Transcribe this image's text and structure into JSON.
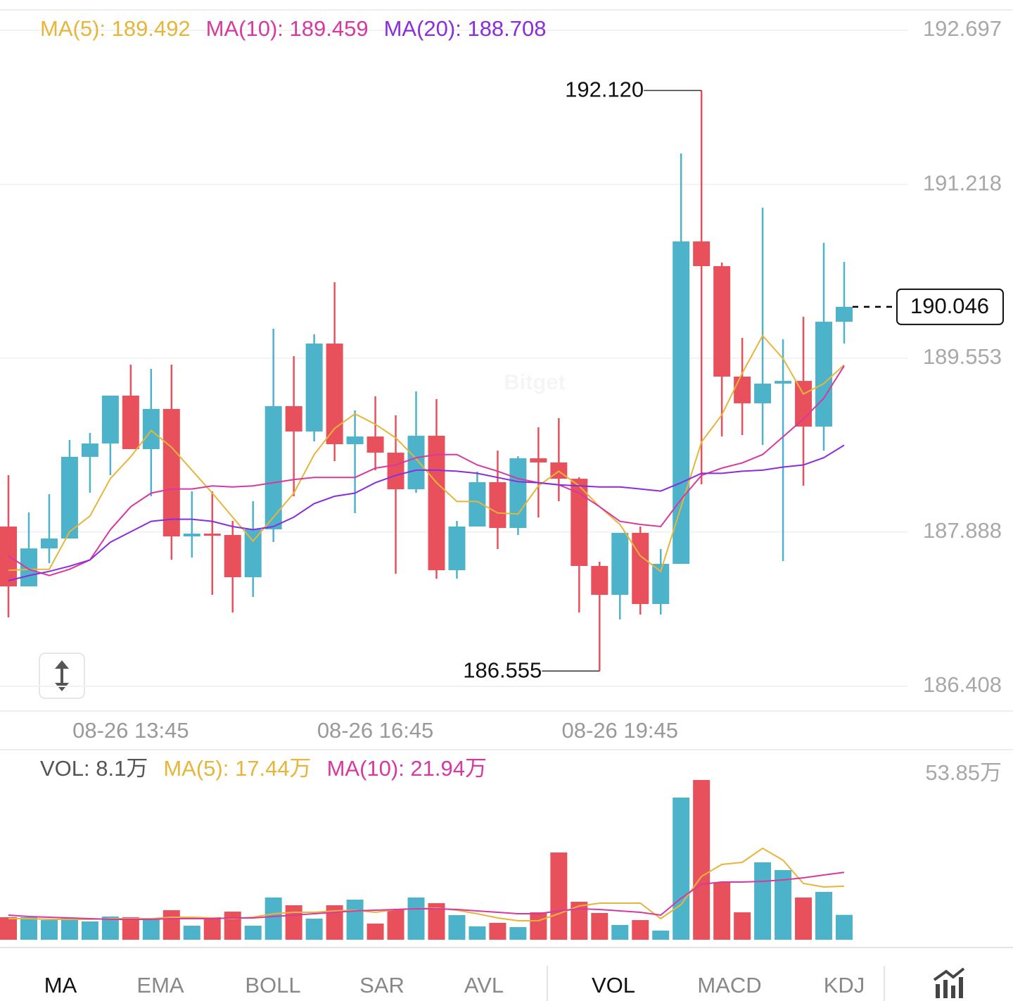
{
  "chart_data": [
    {
      "type": "candlestick",
      "watermark": "Bitget",
      "up_color": "#4cb3cb",
      "down_color": "#e8515c",
      "categories": [
        null,
        null,
        null,
        null,
        null,
        null,
        "08-26 13:45",
        null,
        null,
        null,
        null,
        null,
        null,
        null,
        null,
        null,
        null,
        null,
        "08-26 16:45",
        null,
        null,
        null,
        null,
        null,
        null,
        null,
        null,
        null,
        null,
        null,
        "08-26 19:45",
        null,
        null,
        null,
        null,
        null,
        null,
        null,
        null,
        null,
        null,
        null
      ],
      "open": [
        187.94,
        187.366,
        187.73,
        187.825,
        188.608,
        188.736,
        189.195,
        188.682,
        189.067,
        187.845,
        187.872,
        187.859,
        187.454,
        187.913,
        189.094,
        188.851,
        189.694,
        188.729,
        188.803,
        188.648,
        188.297,
        188.81,
        187.521,
        187.94,
        188.365,
        187.926,
        188.594,
        188.554,
        188.398,
        187.562,
        187.285,
        187.879,
        187.197,
        187.582,
        190.673,
        190.436,
        189.377,
        189.121,
        189.31,
        189.336,
        188.898,
        189.903
      ],
      "high": [
        188.432,
        188.075,
        188.25,
        188.77,
        188.837,
        189.195,
        189.492,
        189.451,
        189.492,
        188.277,
        188.277,
        187.994,
        188.183,
        189.836,
        189.573,
        189.782,
        190.281,
        189.053,
        189.188,
        189.006,
        189.235,
        189.161,
        187.994,
        188.466,
        188.668,
        188.614,
        188.891,
        188.979,
        188.412,
        187.602,
        187.879,
        187.94,
        187.724,
        191.516,
        192.12,
        190.47,
        189.748,
        190.996,
        189.735,
        189.951,
        190.659,
        190.477
      ],
      "low": [
        187.069,
        187.366,
        187.589,
        187.825,
        188.264,
        188.432,
        188.682,
        188.23,
        187.622,
        187.643,
        187.285,
        187.116,
        187.265,
        187.791,
        188.23,
        188.756,
        188.567,
        188.068,
        188.479,
        187.488,
        188.264,
        187.44,
        187.44,
        187.94,
        187.724,
        187.859,
        188.027,
        188.183,
        187.116,
        186.555,
        187.049,
        187.096,
        187.096,
        187.582,
        188.345,
        188.803,
        188.817,
        188.722,
        187.609,
        188.331,
        188.668,
        189.694
      ],
      "close": [
        187.366,
        187.73,
        187.825,
        188.608,
        188.736,
        189.195,
        188.682,
        189.067,
        187.845,
        187.872,
        187.859,
        187.454,
        187.913,
        189.094,
        188.851,
        189.694,
        188.729,
        188.803,
        188.648,
        188.297,
        188.81,
        187.521,
        187.94,
        188.365,
        187.926,
        188.594,
        188.554,
        188.398,
        187.562,
        187.285,
        187.879,
        187.197,
        187.582,
        190.673,
        190.436,
        189.377,
        189.121,
        189.31,
        189.336,
        188.898,
        189.903,
        190.046
      ],
      "series": [
        {
          "name": "MA(5): 189.492",
          "color": "#e6b53a",
          "values": [
            187.52,
            187.53,
            187.53,
            187.89,
            188.04,
            188.4,
            188.61,
            188.86,
            188.7,
            188.48,
            188.26,
            188.03,
            187.8,
            188.03,
            188.26,
            188.63,
            188.88,
            189.02,
            188.92,
            188.79,
            188.59,
            188.36,
            188.18,
            188.18,
            188.07,
            188.06,
            188.33,
            188.47,
            188.33,
            188.13,
            187.96,
            187.66,
            187.51,
            188.13,
            188.75,
            189.01,
            189.41,
            189.77,
            189.55,
            189.21,
            189.31,
            189.49
          ]
        },
        {
          "name": "MA(10): 189.459",
          "color": "#d6399f",
          "values": [
            187.66,
            187.53,
            187.47,
            187.53,
            187.62,
            187.91,
            188.13,
            188.26,
            188.3,
            188.3,
            188.33,
            188.32,
            188.33,
            188.36,
            188.39,
            188.41,
            188.41,
            188.41,
            188.5,
            188.53,
            188.6,
            188.63,
            188.63,
            188.53,
            188.47,
            188.4,
            188.36,
            188.34,
            188.26,
            188.13,
            187.99,
            187.96,
            187.94,
            188.2,
            188.43,
            188.5,
            188.55,
            188.63,
            188.8,
            188.97,
            189.17,
            189.48
          ]
        },
        {
          "name": "MA(20): 188.708",
          "color": "#8a2ddc",
          "values": [
            187.42,
            187.47,
            187.51,
            187.56,
            187.62,
            187.79,
            187.89,
            187.99,
            188.01,
            188.01,
            187.99,
            187.94,
            187.91,
            187.94,
            188.03,
            188.16,
            188.23,
            188.26,
            188.36,
            188.43,
            188.48,
            188.48,
            188.47,
            188.45,
            188.41,
            188.37,
            188.36,
            188.34,
            188.33,
            188.32,
            188.32,
            188.3,
            188.28,
            188.36,
            188.45,
            188.45,
            188.47,
            188.48,
            188.51,
            188.53,
            188.6,
            188.72
          ]
        }
      ],
      "ylim": [
        186.408,
        192.697
      ],
      "yticks": [
        186.408,
        187.888,
        189.553,
        191.218,
        192.697
      ],
      "grid": true,
      "annotations": [
        {
          "kind": "high",
          "value": 192.12,
          "label": "192.120"
        },
        {
          "kind": "low",
          "value": 186.555,
          "label": "186.555"
        },
        {
          "kind": "last",
          "value": 190.046,
          "label": "190.046"
        }
      ]
    },
    {
      "type": "bar",
      "legend_title": "VOL: 8.1万",
      "values": [
        7.33,
        7.33,
        6.41,
        7.1,
        5.96,
        7.56,
        7.33,
        6.64,
        9.62,
        4.58,
        7.33,
        9.16,
        4.58,
        13.75,
        11.23,
        6.87,
        11.23,
        13.06,
        5.27,
        9.85,
        13.75,
        11.91,
        8.02,
        4.35,
        5.5,
        4.12,
        8.93,
        28.41,
        12.37,
        8.71,
        4.81,
        6.41,
        2.98,
        46.28,
        52.01,
        18.56,
        8.93,
        25.2,
        22.68,
        13.75,
        15.58,
        8.1
      ],
      "series": [
        {
          "name": "MA(5): 17.44万",
          "color": "#e6b53a",
          "values": [
            6.87,
            6.87,
            6.64,
            6.64,
            6.64,
            6.87,
            6.87,
            6.87,
            7.33,
            7.33,
            7.1,
            6.87,
            7.33,
            8.48,
            8.93,
            8.93,
            9.39,
            9.62,
            8.93,
            9.85,
            10.08,
            10.31,
            9.62,
            8.48,
            7.1,
            6.19,
            6.19,
            8.48,
            11.0,
            11.91,
            11.91,
            11.91,
            6.87,
            11.46,
            20.62,
            24.51,
            25.2,
            29.78,
            25.89,
            18.33,
            17.18,
            17.44
          ]
        },
        {
          "name": "MA(10): 21.94万",
          "color": "#d6399f",
          "values": [
            8.02,
            7.56,
            7.33,
            7.1,
            6.87,
            6.64,
            6.64,
            6.64,
            6.87,
            6.87,
            6.87,
            7.1,
            7.1,
            7.56,
            8.02,
            8.48,
            8.93,
            9.39,
            9.62,
            9.85,
            10.08,
            10.08,
            9.85,
            9.39,
            8.93,
            8.48,
            8.48,
            9.39,
            10.08,
            9.85,
            9.39,
            8.93,
            8.02,
            13.52,
            18.1,
            18.79,
            18.79,
            19.02,
            19.47,
            20.16,
            21.08,
            21.94
          ]
        }
      ],
      "ylim": [
        0,
        53.85
      ],
      "yticks": [
        {
          "value": 53.85,
          "label": "53.85万"
        }
      ]
    }
  ],
  "indicator_tabs": {
    "main": [
      "MA",
      "EMA",
      "BOLL",
      "SAR",
      "AVL"
    ],
    "sub": [
      "VOL",
      "MACD",
      "KDJ"
    ]
  }
}
